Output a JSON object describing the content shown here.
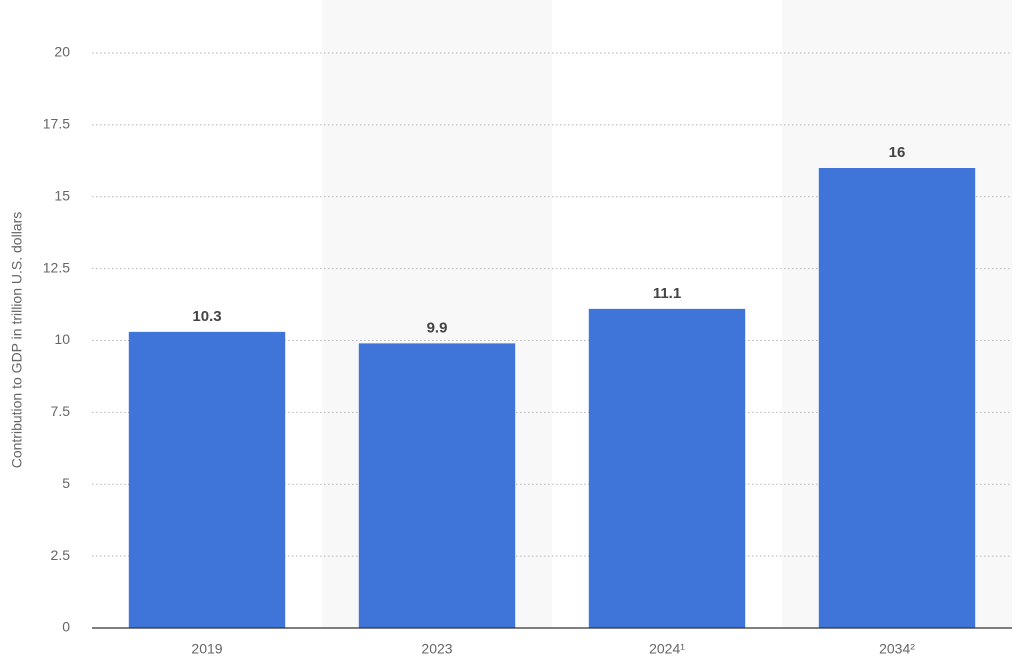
{
  "chart_data": {
    "type": "bar",
    "y_label": "Contribution to GDP in trillion U.S. dollars",
    "categories": [
      "2019",
      "2023",
      "2024¹",
      "2034²"
    ],
    "values": [
      10.3,
      9.9,
      11.1,
      16
    ],
    "color": "#3f74d8",
    "ylim": [
      0,
      20
    ],
    "yticks": [
      0,
      2.5,
      5,
      7.5,
      10,
      12.5,
      15,
      17.5,
      20
    ],
    "grid": true
  }
}
